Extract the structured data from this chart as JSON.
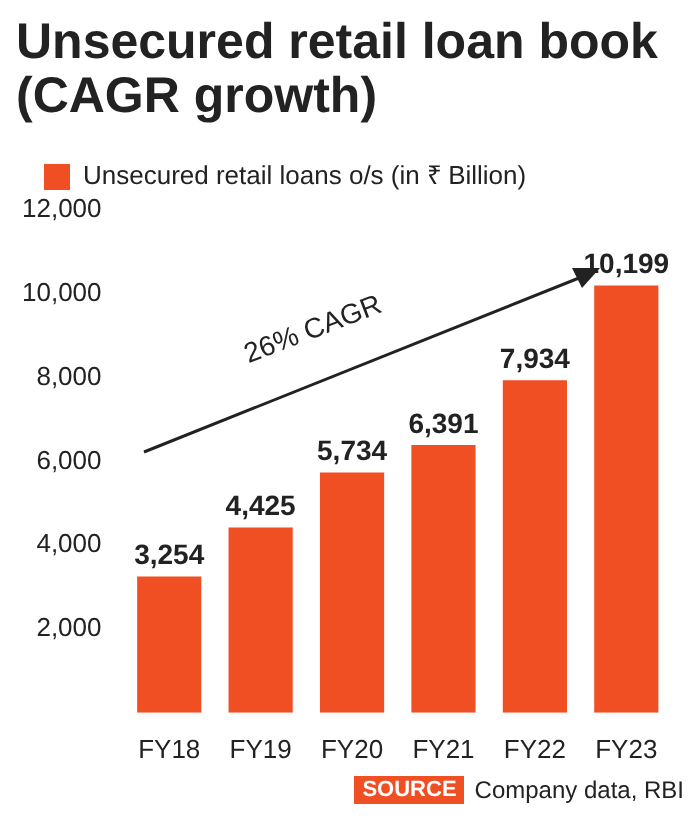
{
  "chart_data": {
    "type": "bar",
    "title": "Unsecured retail loan book (CAGR growth)",
    "categories": [
      "FY18",
      "FY19",
      "FY20",
      "FY21",
      "FY22",
      "FY23"
    ],
    "series": [
      {
        "name": "Unsecured retail loans o/s (in ₹ Billion)",
        "color": "#f04e23",
        "values": [
          3254,
          4425,
          5734,
          6391,
          7934,
          10199
        ],
        "value_labels": [
          "3,254",
          "4,425",
          "5,734",
          "6,391",
          "7,934",
          "10,199"
        ]
      }
    ],
    "ylim": [
      0,
      12000
    ],
    "yticks": [
      {
        "value": 2000,
        "label": "2,000"
      },
      {
        "value": 4000,
        "label": "4,000"
      },
      {
        "value": 6000,
        "label": "6,000"
      },
      {
        "value": 8000,
        "label": "8,000"
      },
      {
        "value": 10000,
        "label": "10,000"
      },
      {
        "value": 12000,
        "label": "12,000"
      }
    ],
    "grid": false,
    "legend": "top",
    "annotations": [
      "26% CAGR",
      "SOURCE",
      "Company data, RBI"
    ]
  }
}
